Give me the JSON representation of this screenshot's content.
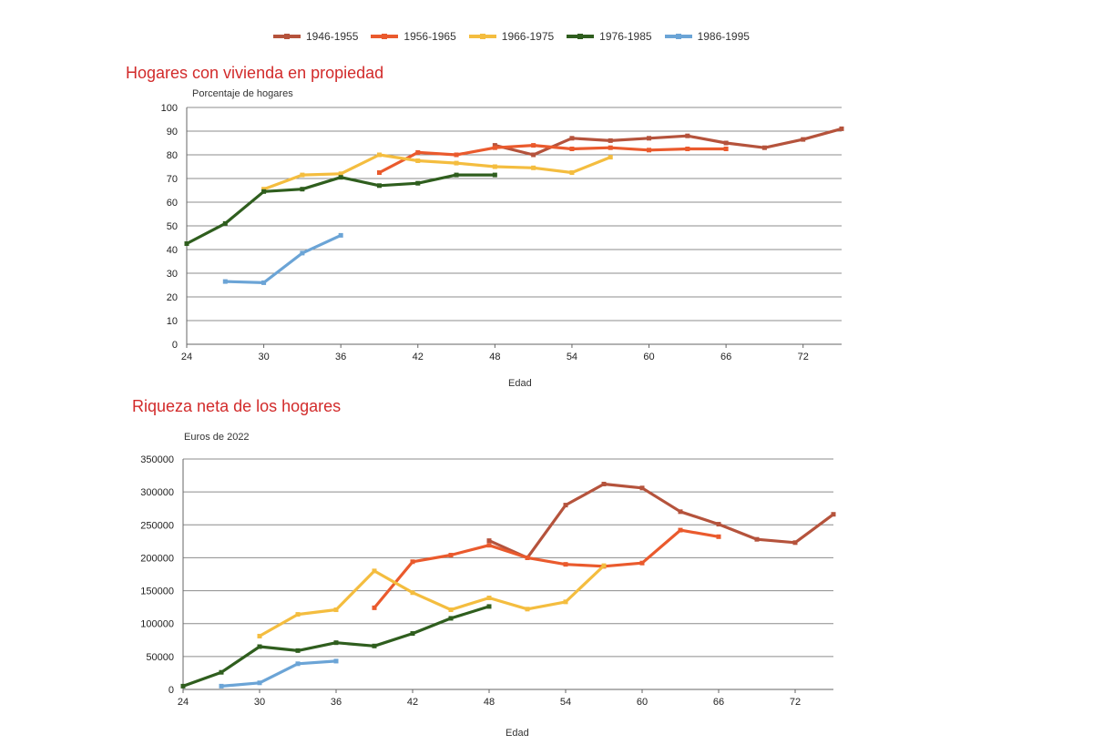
{
  "legend": [
    {
      "name": "1946-1955",
      "color": "#b5533c"
    },
    {
      "name": "1956-1965",
      "color": "#ea5a2d"
    },
    {
      "name": "1966-1975",
      "color": "#f4bd3f"
    },
    {
      "name": "1976-1985",
      "color": "#2f5e1e"
    },
    {
      "name": "1986-1995",
      "color": "#6ba4d6"
    }
  ],
  "chart_data": [
    {
      "type": "line",
      "title": "Hogares con vivienda en propiedad",
      "ylabel": "Porcentaje de hogares",
      "xlabel": "Edad",
      "xlim": [
        24,
        75
      ],
      "ylim": [
        0,
        100
      ],
      "xticks": [
        24,
        30,
        36,
        42,
        48,
        54,
        60,
        66,
        72
      ],
      "yticks": [
        0,
        10,
        20,
        30,
        40,
        50,
        60,
        70,
        80,
        90,
        100
      ],
      "grid": "horizontal",
      "series": [
        {
          "name": "1946-1955",
          "color": "#b5533c",
          "x": [
            48,
            51,
            54,
            57,
            60,
            63,
            66,
            69,
            72,
            75
          ],
          "y": [
            84,
            80,
            87,
            86,
            87,
            88,
            85,
            83,
            86.5,
            91
          ]
        },
        {
          "name": "1956-1965",
          "color": "#ea5a2d",
          "x": [
            39,
            42,
            45,
            48,
            51,
            54,
            57,
            60,
            63,
            66
          ],
          "y": [
            72.5,
            81,
            80,
            83,
            84,
            82.5,
            83,
            82,
            82.5,
            82.5
          ]
        },
        {
          "name": "1966-1975",
          "color": "#f4bd3f",
          "x": [
            30,
            33,
            36,
            39,
            42,
            45,
            48,
            51,
            54,
            57
          ],
          "y": [
            65.5,
            71.5,
            72,
            80,
            77.5,
            76.5,
            75,
            74.5,
            72.5,
            79
          ]
        },
        {
          "name": "1976-1985",
          "color": "#2f5e1e",
          "x": [
            24,
            27,
            30,
            33,
            36,
            39,
            42,
            45,
            48
          ],
          "y": [
            42.5,
            51,
            64.5,
            65.5,
            70.5,
            67,
            68,
            71.5,
            71.5
          ]
        },
        {
          "name": "1986-1995",
          "color": "#6ba4d6",
          "x": [
            27,
            30,
            33,
            36
          ],
          "y": [
            26.5,
            26,
            38.5,
            46
          ]
        }
      ]
    },
    {
      "type": "line",
      "title": "Riqueza neta de los hogares",
      "ylabel": "Euros de 2022",
      "xlabel": "Edad",
      "xlim": [
        24,
        75
      ],
      "ylim": [
        0,
        350000
      ],
      "xticks": [
        24,
        30,
        36,
        42,
        48,
        54,
        60,
        66,
        72
      ],
      "yticks": [
        0,
        50000,
        100000,
        150000,
        200000,
        250000,
        300000,
        350000
      ],
      "grid": "horizontal",
      "series": [
        {
          "name": "1946-1955",
          "color": "#b5533c",
          "x": [
            48,
            51,
            54,
            57,
            60,
            63,
            66,
            69,
            72,
            75
          ],
          "y": [
            226000,
            200000,
            280000,
            312000,
            306000,
            270000,
            251000,
            228000,
            223000,
            266000
          ]
        },
        {
          "name": "1956-1965",
          "color": "#ea5a2d",
          "x": [
            39,
            42,
            45,
            48,
            51,
            54,
            57,
            60,
            63,
            66
          ],
          "y": [
            124000,
            194000,
            204000,
            219000,
            200000,
            190000,
            187000,
            192000,
            242000,
            232000
          ]
        },
        {
          "name": "1966-1975",
          "color": "#f4bd3f",
          "x": [
            30,
            33,
            36,
            39,
            42,
            45,
            48,
            51,
            54,
            57
          ],
          "y": [
            81000,
            114000,
            121000,
            180000,
            147000,
            121000,
            139000,
            122000,
            133000,
            188000
          ]
        },
        {
          "name": "1976-1985",
          "color": "#2f5e1e",
          "x": [
            24,
            27,
            30,
            33,
            36,
            39,
            42,
            45,
            48
          ],
          "y": [
            5000,
            26000,
            65000,
            59000,
            71000,
            66000,
            85000,
            108000,
            126000
          ]
        },
        {
          "name": "1986-1995",
          "color": "#6ba4d6",
          "x": [
            27,
            30,
            33,
            36
          ],
          "y": [
            5000,
            10000,
            39000,
            43000
          ]
        }
      ]
    }
  ]
}
